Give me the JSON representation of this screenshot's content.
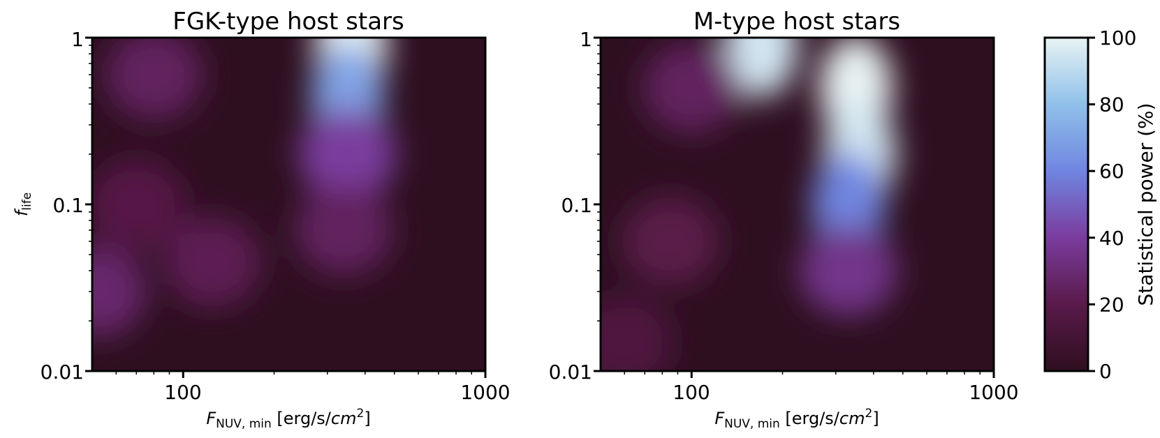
{
  "chart_data": [
    {
      "type": "heatmap",
      "title": "FGK-type host stars",
      "xlabel": "F_NUV,min [erg/s/cm^2]",
      "ylabel": "f_life",
      "x_scale": "log",
      "y_scale": "log",
      "xlim": [
        50,
        1000
      ],
      "ylim": [
        0.01,
        1
      ],
      "x_ticks": [
        "100",
        "1000"
      ],
      "y_ticks": [
        "1",
        "0.1",
        "0.01"
      ],
      "value_label": "Statistical power (%)",
      "peaks": [
        {
          "x": 360,
          "y": 0.9,
          "value": 100
        },
        {
          "x": 350,
          "y": 0.45,
          "value": 70
        },
        {
          "x": 350,
          "y": 0.2,
          "value": 40
        },
        {
          "x": 340,
          "y": 0.07,
          "value": 25
        },
        {
          "x": 80,
          "y": 0.6,
          "value": 25
        },
        {
          "x": 125,
          "y": 0.045,
          "value": 22
        },
        {
          "x": 52,
          "y": 0.03,
          "value": 28
        },
        {
          "x": 70,
          "y": 0.1,
          "value": 18
        }
      ]
    },
    {
      "type": "heatmap",
      "title": "M-type host stars",
      "xlabel": "F_NUV,min [erg/s/cm^2]",
      "x_scale": "log",
      "y_scale": "log",
      "xlim": [
        50,
        1000
      ],
      "ylim": [
        0.01,
        1
      ],
      "x_ticks": [
        "100",
        "1000"
      ],
      "y_ticks": [
        "1",
        "0.1",
        "0.01"
      ],
      "value_label": "Statistical power (%)",
      "peaks": [
        {
          "x": 350,
          "y": 0.5,
          "value": 100
        },
        {
          "x": 360,
          "y": 0.2,
          "value": 95
        },
        {
          "x": 170,
          "y": 0.9,
          "value": 95
        },
        {
          "x": 330,
          "y": 0.1,
          "value": 60
        },
        {
          "x": 330,
          "y": 0.04,
          "value": 35
        },
        {
          "x": 100,
          "y": 0.5,
          "value": 25
        },
        {
          "x": 85,
          "y": 0.06,
          "value": 20
        },
        {
          "x": 60,
          "y": 0.015,
          "value": 15
        }
      ]
    }
  ],
  "colorbar": {
    "label": "Statistical power (%)",
    "ticks": [
      "0",
      "20",
      "40",
      "60",
      "80",
      "100"
    ],
    "range": [
      0,
      100
    ],
    "colors": [
      "#2e0f20",
      "#5a1a4a",
      "#7a3c9e",
      "#7085e0",
      "#8fc0ea",
      "#e8f3f3"
    ]
  },
  "labels": {
    "left_title": "FGK-type host stars",
    "right_title": "M-type host stars",
    "ylabel_main": "f",
    "ylabel_sub": "life",
    "xlabel_main": "F",
    "xlabel_sub": "NUV, min",
    "xlabel_unit_open": " [erg/s/",
    "xlabel_unit_cm": "cm",
    "xlabel_unit_exp": "2",
    "xlabel_unit_close": "]",
    "colorbar_label": "Statistical power (%)",
    "x_tick_100": "100",
    "x_tick_1000": "1000",
    "y_tick_1": "1",
    "y_tick_01": "0.1",
    "y_tick_001": "0.01"
  }
}
